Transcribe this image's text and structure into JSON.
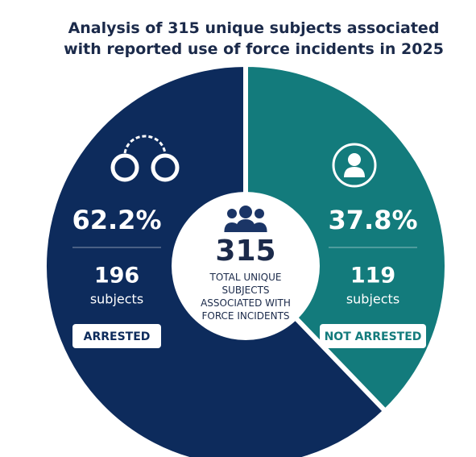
{
  "chart_data": {
    "type": "pie",
    "title": "Analysis of 315 unique subjects associated with reported use of force incidents in 2025",
    "categories": [
      "ARRESTED",
      "NOT ARRESTED"
    ],
    "values": [
      62.2,
      37.8
    ],
    "value_labels": [
      "62.2%",
      "37.8%"
    ],
    "counts": [
      196,
      119
    ],
    "count_unit": "subjects",
    "colors": [
      "#0d2b5c",
      "#137b7c"
    ],
    "total": 315,
    "total_label": "TOTAL UNIQUE SUBJECTS ASSOCIATED WITH FORCE INCIDENTS"
  }
}
